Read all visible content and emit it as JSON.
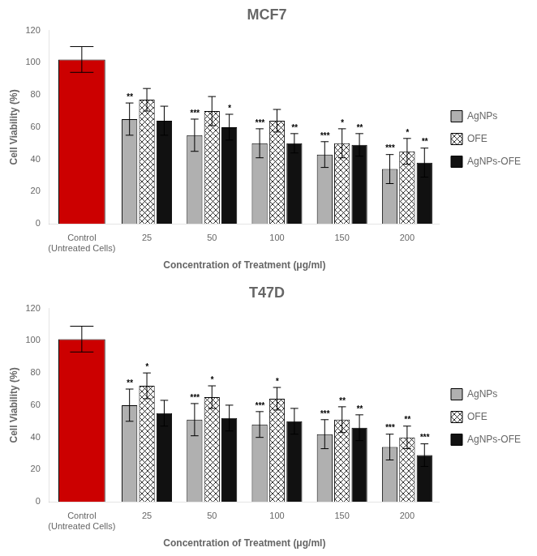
{
  "chart_data": [
    {
      "type": "bar",
      "title": "MCF7",
      "xlabel": "Concentration of Treatment (μg/ml)",
      "ylabel": "Cell Viability (%)",
      "categories": [
        "Control\n(Untreated Cells)",
        "25",
        "50",
        "100",
        "150",
        "200"
      ],
      "series": [
        {
          "color": "#cc0000",
          "values": [
            102,
            null,
            null,
            null,
            null,
            null
          ],
          "errors": [
            8,
            null,
            null,
            null,
            null,
            null
          ],
          "significance": [
            null,
            null,
            null,
            null,
            null,
            null
          ]
        },
        {
          "name": "AgNPs",
          "color": "#b0b0b0",
          "values": [
            null,
            65,
            55,
            50,
            43,
            34
          ],
          "errors": [
            null,
            10,
            10,
            9,
            8,
            9
          ],
          "significance": [
            null,
            "**",
            "***",
            "***",
            "***",
            "***"
          ]
        },
        {
          "name": "OFE",
          "color": "#ffffff",
          "values": [
            null,
            77,
            70,
            64,
            50,
            45
          ],
          "errors": [
            null,
            7,
            9,
            7,
            9,
            8
          ],
          "significance": [
            null,
            null,
            null,
            null,
            "*",
            "*"
          ]
        },
        {
          "name": "AgNPs-OFE",
          "color": "#111111",
          "values": [
            null,
            64,
            60,
            50,
            49,
            38
          ],
          "errors": [
            null,
            9,
            8,
            6,
            7,
            9
          ],
          "significance": [
            null,
            null,
            "*",
            "**",
            "**",
            "**"
          ]
        }
      ],
      "ylim": [
        0,
        120
      ],
      "yticks": [
        0,
        20,
        40,
        60,
        80,
        100,
        120
      ],
      "grid": false,
      "legend": "right"
    },
    {
      "type": "bar",
      "title": "T47D",
      "xlabel": "Concentration of Treatment (μg/ml)",
      "ylabel": "Cell Viability (%)",
      "categories": [
        "Control\n(Untreated Cells)",
        "25",
        "50",
        "100",
        "150",
        "200"
      ],
      "series": [
        {
          "color": "#cc0000",
          "values": [
            101,
            null,
            null,
            null,
            null,
            null
          ],
          "errors": [
            8,
            null,
            null,
            null,
            null,
            null
          ],
          "significance": [
            null,
            null,
            null,
            null,
            null,
            null
          ]
        },
        {
          "name": "AgNPs",
          "color": "#b0b0b0",
          "values": [
            null,
            60,
            51,
            48,
            42,
            34
          ],
          "errors": [
            null,
            10,
            10,
            8,
            9,
            8
          ],
          "significance": [
            null,
            "**",
            "***",
            "***",
            "***",
            "***"
          ]
        },
        {
          "name": "OFE",
          "color": "#ffffff",
          "values": [
            null,
            72,
            65,
            64,
            51,
            40
          ],
          "errors": [
            null,
            8,
            7,
            7,
            8,
            7
          ],
          "significance": [
            null,
            "*",
            "*",
            "*",
            "**",
            "**"
          ]
        },
        {
          "name": "AgNPs-OFE",
          "color": "#111111",
          "values": [
            null,
            55,
            52,
            50,
            46,
            29
          ],
          "errors": [
            null,
            8,
            8,
            8,
            8,
            7
          ],
          "significance": [
            null,
            null,
            null,
            null,
            "**",
            "***"
          ]
        }
      ],
      "ylim": [
        0,
        120
      ],
      "yticks": [
        0,
        20,
        40,
        60,
        80,
        100,
        120
      ],
      "grid": false,
      "legend": "right"
    }
  ]
}
